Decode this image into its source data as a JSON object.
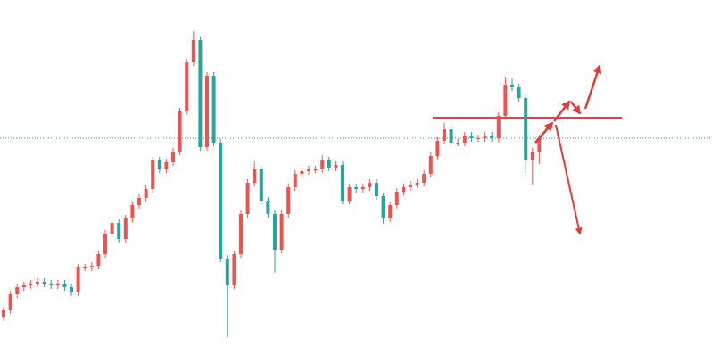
{
  "chart_data": {
    "type": "candlestick",
    "ylim": [
      0,
      406
    ],
    "up_color": "#ef5350",
    "down_color": "#26a69a",
    "price_line": 251,
    "price_line_color": "#26a69a",
    "level_line": 274,
    "level_line_color": "#ef3b3b",
    "open": [
      50,
      58,
      76,
      84,
      86,
      88,
      90,
      88,
      86,
      88,
      84,
      78,
      106,
      106,
      108,
      121,
      144,
      156,
      138,
      161,
      176,
      184,
      194,
      226,
      216,
      224,
      236,
      281,
      336,
      361,
      241,
      321,
      246,
      116,
      86,
      121,
      166,
      201,
      216,
      181,
      166,
      126,
      166,
      196,
      211,
      214,
      216,
      216,
      226,
      218,
      221,
      181,
      196,
      194,
      196,
      201,
      186,
      161,
      176,
      191,
      196,
      199,
      201,
      211,
      231,
      248,
      261,
      246,
      246,
      254,
      251,
      251,
      254,
      251,
      276,
      311,
      308,
      296,
      226,
      236
    ],
    "high": [
      62,
      80,
      88,
      90,
      92,
      94,
      94,
      92,
      92,
      92,
      88,
      110,
      110,
      112,
      125,
      148,
      160,
      160,
      165,
      180,
      188,
      198,
      230,
      230,
      228,
      240,
      285,
      340,
      371,
      365,
      325,
      325,
      250,
      120,
      125,
      170,
      205,
      225,
      220,
      185,
      170,
      170,
      200,
      215,
      218,
      220,
      220,
      232,
      230,
      225,
      225,
      200,
      200,
      200,
      205,
      205,
      190,
      180,
      195,
      200,
      203,
      205,
      215,
      235,
      252,
      268,
      265,
      250,
      258,
      258,
      255,
      258,
      258,
      280,
      320,
      318,
      312,
      300,
      240,
      255
    ],
    "low": [
      46,
      54,
      72,
      80,
      82,
      84,
      84,
      82,
      82,
      80,
      74,
      74,
      102,
      102,
      104,
      117,
      140,
      134,
      134,
      157,
      172,
      180,
      190,
      212,
      212,
      220,
      232,
      277,
      332,
      237,
      237,
      242,
      112,
      28,
      82,
      117,
      162,
      197,
      177,
      162,
      100,
      122,
      162,
      192,
      207,
      210,
      212,
      212,
      214,
      214,
      177,
      177,
      190,
      190,
      192,
      182,
      155,
      157,
      172,
      187,
      192,
      195,
      197,
      207,
      227,
      244,
      242,
      242,
      242,
      247,
      247,
      247,
      247,
      247,
      272,
      304,
      292,
      212,
      199,
      222
    ],
    "close": [
      58,
      76,
      84,
      86,
      88,
      90,
      88,
      86,
      88,
      84,
      78,
      106,
      106,
      108,
      121,
      144,
      156,
      138,
      161,
      176,
      184,
      194,
      226,
      216,
      224,
      236,
      281,
      336,
      361,
      241,
      321,
      246,
      116,
      86,
      121,
      166,
      201,
      216,
      181,
      166,
      126,
      166,
      196,
      211,
      214,
      216,
      216,
      226,
      218,
      221,
      181,
      196,
      194,
      196,
      201,
      186,
      161,
      176,
      191,
      196,
      199,
      201,
      211,
      231,
      248,
      261,
      246,
      246,
      254,
      251,
      251,
      254,
      251,
      276,
      311,
      308,
      296,
      226,
      236,
      251
    ]
  }
}
